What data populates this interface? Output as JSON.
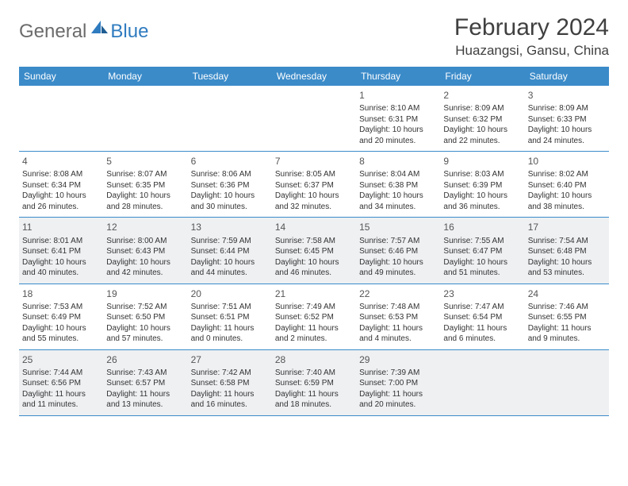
{
  "logo": {
    "general": "General",
    "blue": "Blue"
  },
  "title": "February 2024",
  "location": "Huazangsi, Gansu, China",
  "colors": {
    "header_bg": "#3b8bc9",
    "header_text": "#ffffff",
    "rule": "#3b8bc9",
    "shaded_bg": "#eef0f2",
    "body_text": "#333333",
    "daynum_text": "#555555",
    "daynum_gray": "#9a9a9a",
    "logo_gray": "#6b6b6b",
    "logo_blue": "#2f7bbf"
  },
  "day_names": [
    "Sunday",
    "Monday",
    "Tuesday",
    "Wednesday",
    "Thursday",
    "Friday",
    "Saturday"
  ],
  "weeks": [
    [
      {
        "n": "",
        "sunrise": "",
        "sunset": "",
        "daylight": "",
        "shaded": false
      },
      {
        "n": "",
        "sunrise": "",
        "sunset": "",
        "daylight": "",
        "shaded": false
      },
      {
        "n": "",
        "sunrise": "",
        "sunset": "",
        "daylight": "",
        "shaded": false
      },
      {
        "n": "",
        "sunrise": "",
        "sunset": "",
        "daylight": "",
        "shaded": false
      },
      {
        "n": "1",
        "sunrise": "Sunrise: 8:10 AM",
        "sunset": "Sunset: 6:31 PM",
        "daylight": "Daylight: 10 hours and 20 minutes.",
        "shaded": false
      },
      {
        "n": "2",
        "sunrise": "Sunrise: 8:09 AM",
        "sunset": "Sunset: 6:32 PM",
        "daylight": "Daylight: 10 hours and 22 minutes.",
        "shaded": false
      },
      {
        "n": "3",
        "sunrise": "Sunrise: 8:09 AM",
        "sunset": "Sunset: 6:33 PM",
        "daylight": "Daylight: 10 hours and 24 minutes.",
        "shaded": false
      }
    ],
    [
      {
        "n": "4",
        "sunrise": "Sunrise: 8:08 AM",
        "sunset": "Sunset: 6:34 PM",
        "daylight": "Daylight: 10 hours and 26 minutes.",
        "shaded": false
      },
      {
        "n": "5",
        "sunrise": "Sunrise: 8:07 AM",
        "sunset": "Sunset: 6:35 PM",
        "daylight": "Daylight: 10 hours and 28 minutes.",
        "shaded": false
      },
      {
        "n": "6",
        "sunrise": "Sunrise: 8:06 AM",
        "sunset": "Sunset: 6:36 PM",
        "daylight": "Daylight: 10 hours and 30 minutes.",
        "shaded": false
      },
      {
        "n": "7",
        "sunrise": "Sunrise: 8:05 AM",
        "sunset": "Sunset: 6:37 PM",
        "daylight": "Daylight: 10 hours and 32 minutes.",
        "shaded": false
      },
      {
        "n": "8",
        "sunrise": "Sunrise: 8:04 AM",
        "sunset": "Sunset: 6:38 PM",
        "daylight": "Daylight: 10 hours and 34 minutes.",
        "shaded": false
      },
      {
        "n": "9",
        "sunrise": "Sunrise: 8:03 AM",
        "sunset": "Sunset: 6:39 PM",
        "daylight": "Daylight: 10 hours and 36 minutes.",
        "shaded": false
      },
      {
        "n": "10",
        "sunrise": "Sunrise: 8:02 AM",
        "sunset": "Sunset: 6:40 PM",
        "daylight": "Daylight: 10 hours and 38 minutes.",
        "shaded": false
      }
    ],
    [
      {
        "n": "11",
        "sunrise": "Sunrise: 8:01 AM",
        "sunset": "Sunset: 6:41 PM",
        "daylight": "Daylight: 10 hours and 40 minutes.",
        "shaded": true
      },
      {
        "n": "12",
        "sunrise": "Sunrise: 8:00 AM",
        "sunset": "Sunset: 6:43 PM",
        "daylight": "Daylight: 10 hours and 42 minutes.",
        "shaded": true
      },
      {
        "n": "13",
        "sunrise": "Sunrise: 7:59 AM",
        "sunset": "Sunset: 6:44 PM",
        "daylight": "Daylight: 10 hours and 44 minutes.",
        "shaded": true
      },
      {
        "n": "14",
        "sunrise": "Sunrise: 7:58 AM",
        "sunset": "Sunset: 6:45 PM",
        "daylight": "Daylight: 10 hours and 46 minutes.",
        "shaded": true
      },
      {
        "n": "15",
        "sunrise": "Sunrise: 7:57 AM",
        "sunset": "Sunset: 6:46 PM",
        "daylight": "Daylight: 10 hours and 49 minutes.",
        "shaded": true
      },
      {
        "n": "16",
        "sunrise": "Sunrise: 7:55 AM",
        "sunset": "Sunset: 6:47 PM",
        "daylight": "Daylight: 10 hours and 51 minutes.",
        "shaded": true
      },
      {
        "n": "17",
        "sunrise": "Sunrise: 7:54 AM",
        "sunset": "Sunset: 6:48 PM",
        "daylight": "Daylight: 10 hours and 53 minutes.",
        "shaded": true
      }
    ],
    [
      {
        "n": "18",
        "sunrise": "Sunrise: 7:53 AM",
        "sunset": "Sunset: 6:49 PM",
        "daylight": "Daylight: 10 hours and 55 minutes.",
        "shaded": false
      },
      {
        "n": "19",
        "sunrise": "Sunrise: 7:52 AM",
        "sunset": "Sunset: 6:50 PM",
        "daylight": "Daylight: 10 hours and 57 minutes.",
        "shaded": false
      },
      {
        "n": "20",
        "sunrise": "Sunrise: 7:51 AM",
        "sunset": "Sunset: 6:51 PM",
        "daylight": "Daylight: 11 hours and 0 minutes.",
        "shaded": false
      },
      {
        "n": "21",
        "sunrise": "Sunrise: 7:49 AM",
        "sunset": "Sunset: 6:52 PM",
        "daylight": "Daylight: 11 hours and 2 minutes.",
        "shaded": false
      },
      {
        "n": "22",
        "sunrise": "Sunrise: 7:48 AM",
        "sunset": "Sunset: 6:53 PM",
        "daylight": "Daylight: 11 hours and 4 minutes.",
        "shaded": false
      },
      {
        "n": "23",
        "sunrise": "Sunrise: 7:47 AM",
        "sunset": "Sunset: 6:54 PM",
        "daylight": "Daylight: 11 hours and 6 minutes.",
        "shaded": false
      },
      {
        "n": "24",
        "sunrise": "Sunrise: 7:46 AM",
        "sunset": "Sunset: 6:55 PM",
        "daylight": "Daylight: 11 hours and 9 minutes.",
        "shaded": false
      }
    ],
    [
      {
        "n": "25",
        "sunrise": "Sunrise: 7:44 AM",
        "sunset": "Sunset: 6:56 PM",
        "daylight": "Daylight: 11 hours and 11 minutes.",
        "shaded": true
      },
      {
        "n": "26",
        "sunrise": "Sunrise: 7:43 AM",
        "sunset": "Sunset: 6:57 PM",
        "daylight": "Daylight: 11 hours and 13 minutes.",
        "shaded": true
      },
      {
        "n": "27",
        "sunrise": "Sunrise: 7:42 AM",
        "sunset": "Sunset: 6:58 PM",
        "daylight": "Daylight: 11 hours and 16 minutes.",
        "shaded": true
      },
      {
        "n": "28",
        "sunrise": "Sunrise: 7:40 AM",
        "sunset": "Sunset: 6:59 PM",
        "daylight": "Daylight: 11 hours and 18 minutes.",
        "shaded": true
      },
      {
        "n": "29",
        "sunrise": "Sunrise: 7:39 AM",
        "sunset": "Sunset: 7:00 PM",
        "daylight": "Daylight: 11 hours and 20 minutes.",
        "shaded": true
      },
      {
        "n": "",
        "sunrise": "",
        "sunset": "",
        "daylight": "",
        "shaded": true
      },
      {
        "n": "",
        "sunrise": "",
        "sunset": "",
        "daylight": "",
        "shaded": true
      }
    ]
  ]
}
